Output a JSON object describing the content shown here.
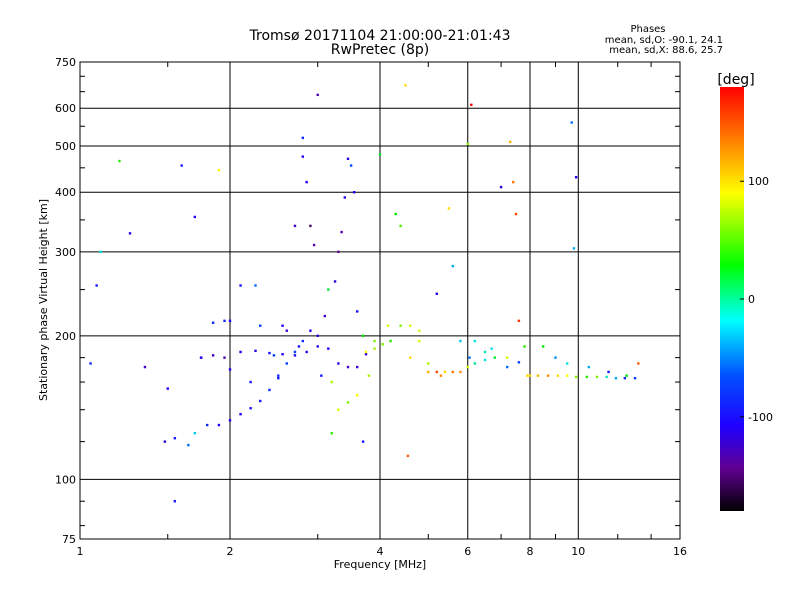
{
  "chart_data": {
    "type": "scatter",
    "title": "Tromsø 20171104 21:00:00-21:01:43",
    "subtitle": "RwPretec (8p)",
    "xlabel": "Frequency [MHz]",
    "ylabel": "Stationary phase Virtual Height [km]",
    "xscale": "log",
    "yscale": "log",
    "xlim": [
      1,
      16
    ],
    "ylim": [
      75,
      750
    ],
    "x_ticks": [
      "1",
      "2",
      "4",
      "6",
      "8",
      "10",
      "16"
    ],
    "y_ticks": [
      "75",
      "100",
      "200",
      "300",
      "400",
      "500",
      "600",
      "750"
    ],
    "grid": true,
    "stats": {
      "heading": "Phases",
      "line_o": "mean, sd,O: -90.1, 24.1",
      "line_x": "mean, sd,X:  88.6, 25.7"
    },
    "colorbar": {
      "label": "[deg]",
      "range": [
        -180,
        180
      ],
      "ticks": [
        "100",
        "0",
        "-100"
      ],
      "colormap": "rainbow"
    },
    "series": [
      {
        "values": [
          [
            1.05,
            175,
            -90
          ],
          [
            1.08,
            255,
            -95
          ],
          [
            1.1,
            300,
            -20
          ],
          [
            1.2,
            465,
            40
          ],
          [
            1.26,
            328,
            -120
          ],
          [
            1.35,
            172,
            -130
          ],
          [
            1.5,
            155,
            -110
          ],
          [
            1.55,
            90,
            -100
          ],
          [
            1.6,
            455,
            -100
          ],
          [
            1.7,
            355,
            -110
          ],
          [
            1.75,
            180,
            -120
          ],
          [
            1.85,
            213,
            -90
          ],
          [
            1.9,
            445,
            90
          ],
          [
            1.95,
            215,
            -90
          ],
          [
            2.0,
            215,
            -110
          ],
          [
            2.0,
            170,
            -110
          ],
          [
            2.1,
            255,
            -100
          ],
          [
            2.2,
            160,
            -100
          ],
          [
            2.25,
            255,
            -60
          ],
          [
            2.3,
            210,
            -80
          ],
          [
            2.45,
            182,
            -80
          ],
          [
            2.5,
            163,
            -100
          ],
          [
            2.55,
            210,
            -110
          ],
          [
            2.6,
            205,
            -130
          ],
          [
            2.7,
            340,
            -130
          ],
          [
            2.75,
            190,
            -100
          ],
          [
            2.8,
            520,
            -90
          ],
          [
            2.8,
            475,
            -110
          ],
          [
            2.85,
            420,
            -110
          ],
          [
            2.9,
            340,
            -160
          ],
          [
            2.95,
            310,
            -140
          ],
          [
            3.0,
            640,
            -140
          ],
          [
            3.0,
            200,
            -120
          ],
          [
            3.05,
            165,
            -100
          ],
          [
            3.1,
            220,
            -130
          ],
          [
            3.15,
            250,
            20
          ],
          [
            3.2,
            125,
            40
          ],
          [
            3.2,
            160,
            70
          ],
          [
            3.25,
            260,
            -120
          ],
          [
            3.3,
            300,
            -150
          ],
          [
            3.35,
            330,
            -140
          ],
          [
            3.4,
            390,
            -110
          ],
          [
            3.45,
            470,
            -120
          ],
          [
            3.5,
            455,
            -70
          ],
          [
            3.55,
            400,
            -110
          ],
          [
            3.6,
            225,
            -100
          ],
          [
            3.7,
            200,
            30
          ],
          [
            3.7,
            120,
            -100
          ],
          [
            3.8,
            165,
            70
          ],
          [
            3.9,
            195,
            60
          ],
          [
            4.0,
            480,
            20
          ],
          [
            4.15,
            210,
            80
          ],
          [
            4.3,
            360,
            30
          ],
          [
            4.4,
            340,
            50
          ],
          [
            4.5,
            670,
            100
          ],
          [
            4.55,
            112,
            140
          ],
          [
            4.6,
            180,
            100
          ],
          [
            4.8,
            195,
            80
          ],
          [
            5.0,
            175,
            70
          ],
          [
            5.2,
            245,
            -120
          ],
          [
            5.3,
            165,
            120
          ],
          [
            5.5,
            370,
            100
          ],
          [
            5.6,
            280,
            -40
          ],
          [
            5.8,
            195,
            -30
          ],
          [
            6.0,
            505,
            60
          ],
          [
            6.05,
            180,
            -60
          ],
          [
            6.1,
            610,
            180
          ],
          [
            6.2,
            195,
            -20
          ],
          [
            6.5,
            185,
            -10
          ],
          [
            6.7,
            188,
            -20
          ],
          [
            7.0,
            410,
            -120
          ],
          [
            7.2,
            180,
            80
          ],
          [
            7.3,
            510,
            110
          ],
          [
            7.4,
            420,
            130
          ],
          [
            7.5,
            360,
            150
          ],
          [
            7.6,
            215,
            160
          ],
          [
            7.8,
            190,
            40
          ],
          [
            8.0,
            165,
            100
          ],
          [
            8.5,
            190,
            30
          ],
          [
            9.0,
            180,
            -50
          ],
          [
            9.5,
            175,
            -20
          ],
          [
            9.7,
            560,
            -60
          ],
          [
            9.8,
            305,
            -40
          ],
          [
            9.9,
            430,
            -110
          ],
          [
            10.5,
            172,
            -40
          ],
          [
            11.5,
            168,
            -100
          ],
          [
            12.5,
            165,
            30
          ],
          [
            13.2,
            175,
            140
          ]
        ]
      },
      {
        "values": [
          [
            1.48,
            120,
            -120
          ],
          [
            1.55,
            122,
            -100
          ],
          [
            1.65,
            118,
            -60
          ],
          [
            1.7,
            125,
            -30
          ],
          [
            1.8,
            130,
            -90
          ],
          [
            1.9,
            130,
            -110
          ],
          [
            2.0,
            133,
            -110
          ],
          [
            2.1,
            137,
            -110
          ],
          [
            2.2,
            141,
            -100
          ],
          [
            2.3,
            146,
            -100
          ],
          [
            2.4,
            154,
            -90
          ],
          [
            2.5,
            165,
            -90
          ],
          [
            2.6,
            175,
            -80
          ],
          [
            2.7,
            185,
            -80
          ],
          [
            2.8,
            195,
            -90
          ],
          [
            2.9,
            205,
            -110
          ]
        ]
      },
      {
        "values": [
          [
            1.75,
            180,
            -120
          ],
          [
            1.85,
            182,
            -130
          ],
          [
            1.95,
            180,
            -140
          ],
          [
            2.1,
            185,
            -110
          ],
          [
            2.25,
            186,
            -120
          ],
          [
            2.4,
            184,
            -100
          ],
          [
            2.55,
            183,
            -110
          ],
          [
            2.7,
            182,
            -110
          ],
          [
            2.85,
            185,
            -120
          ],
          [
            3.0,
            190,
            -120
          ],
          [
            3.15,
            188,
            -110
          ],
          [
            3.3,
            175,
            -120
          ],
          [
            3.45,
            172,
            -130
          ],
          [
            3.6,
            172,
            -130
          ],
          [
            3.75,
            183,
            -120
          ]
        ]
      },
      {
        "values": [
          [
            3.3,
            140,
            80
          ],
          [
            3.45,
            145,
            60
          ],
          [
            3.6,
            150,
            90
          ],
          [
            3.75,
            185,
            90
          ],
          [
            3.9,
            188,
            70
          ],
          [
            4.05,
            192,
            60
          ],
          [
            4.2,
            195,
            40
          ],
          [
            4.4,
            210,
            60
          ],
          [
            4.6,
            210,
            80
          ],
          [
            4.8,
            205,
            80
          ]
        ]
      },
      {
        "values": [
          [
            5.0,
            168,
            110
          ],
          [
            5.2,
            168,
            150
          ],
          [
            5.4,
            168,
            100
          ],
          [
            5.6,
            168,
            130
          ],
          [
            5.8,
            168,
            120
          ],
          [
            6.0,
            172,
            80
          ],
          [
            6.2,
            175,
            0
          ],
          [
            6.5,
            178,
            -20
          ],
          [
            6.8,
            180,
            20
          ],
          [
            7.2,
            172,
            -60
          ],
          [
            7.6,
            176,
            -80
          ]
        ]
      },
      {
        "values": [
          [
            7.9,
            165,
            100
          ],
          [
            8.3,
            165,
            110
          ],
          [
            8.7,
            165,
            120
          ],
          [
            9.1,
            165,
            100
          ],
          [
            9.5,
            165,
            90
          ],
          [
            9.9,
            164,
            60
          ],
          [
            10.4,
            164,
            40
          ],
          [
            10.9,
            164,
            60
          ],
          [
            11.4,
            164,
            -10
          ],
          [
            11.9,
            163,
            -40
          ],
          [
            12.4,
            163,
            -90
          ],
          [
            13.0,
            163,
            -80
          ]
        ]
      }
    ]
  }
}
